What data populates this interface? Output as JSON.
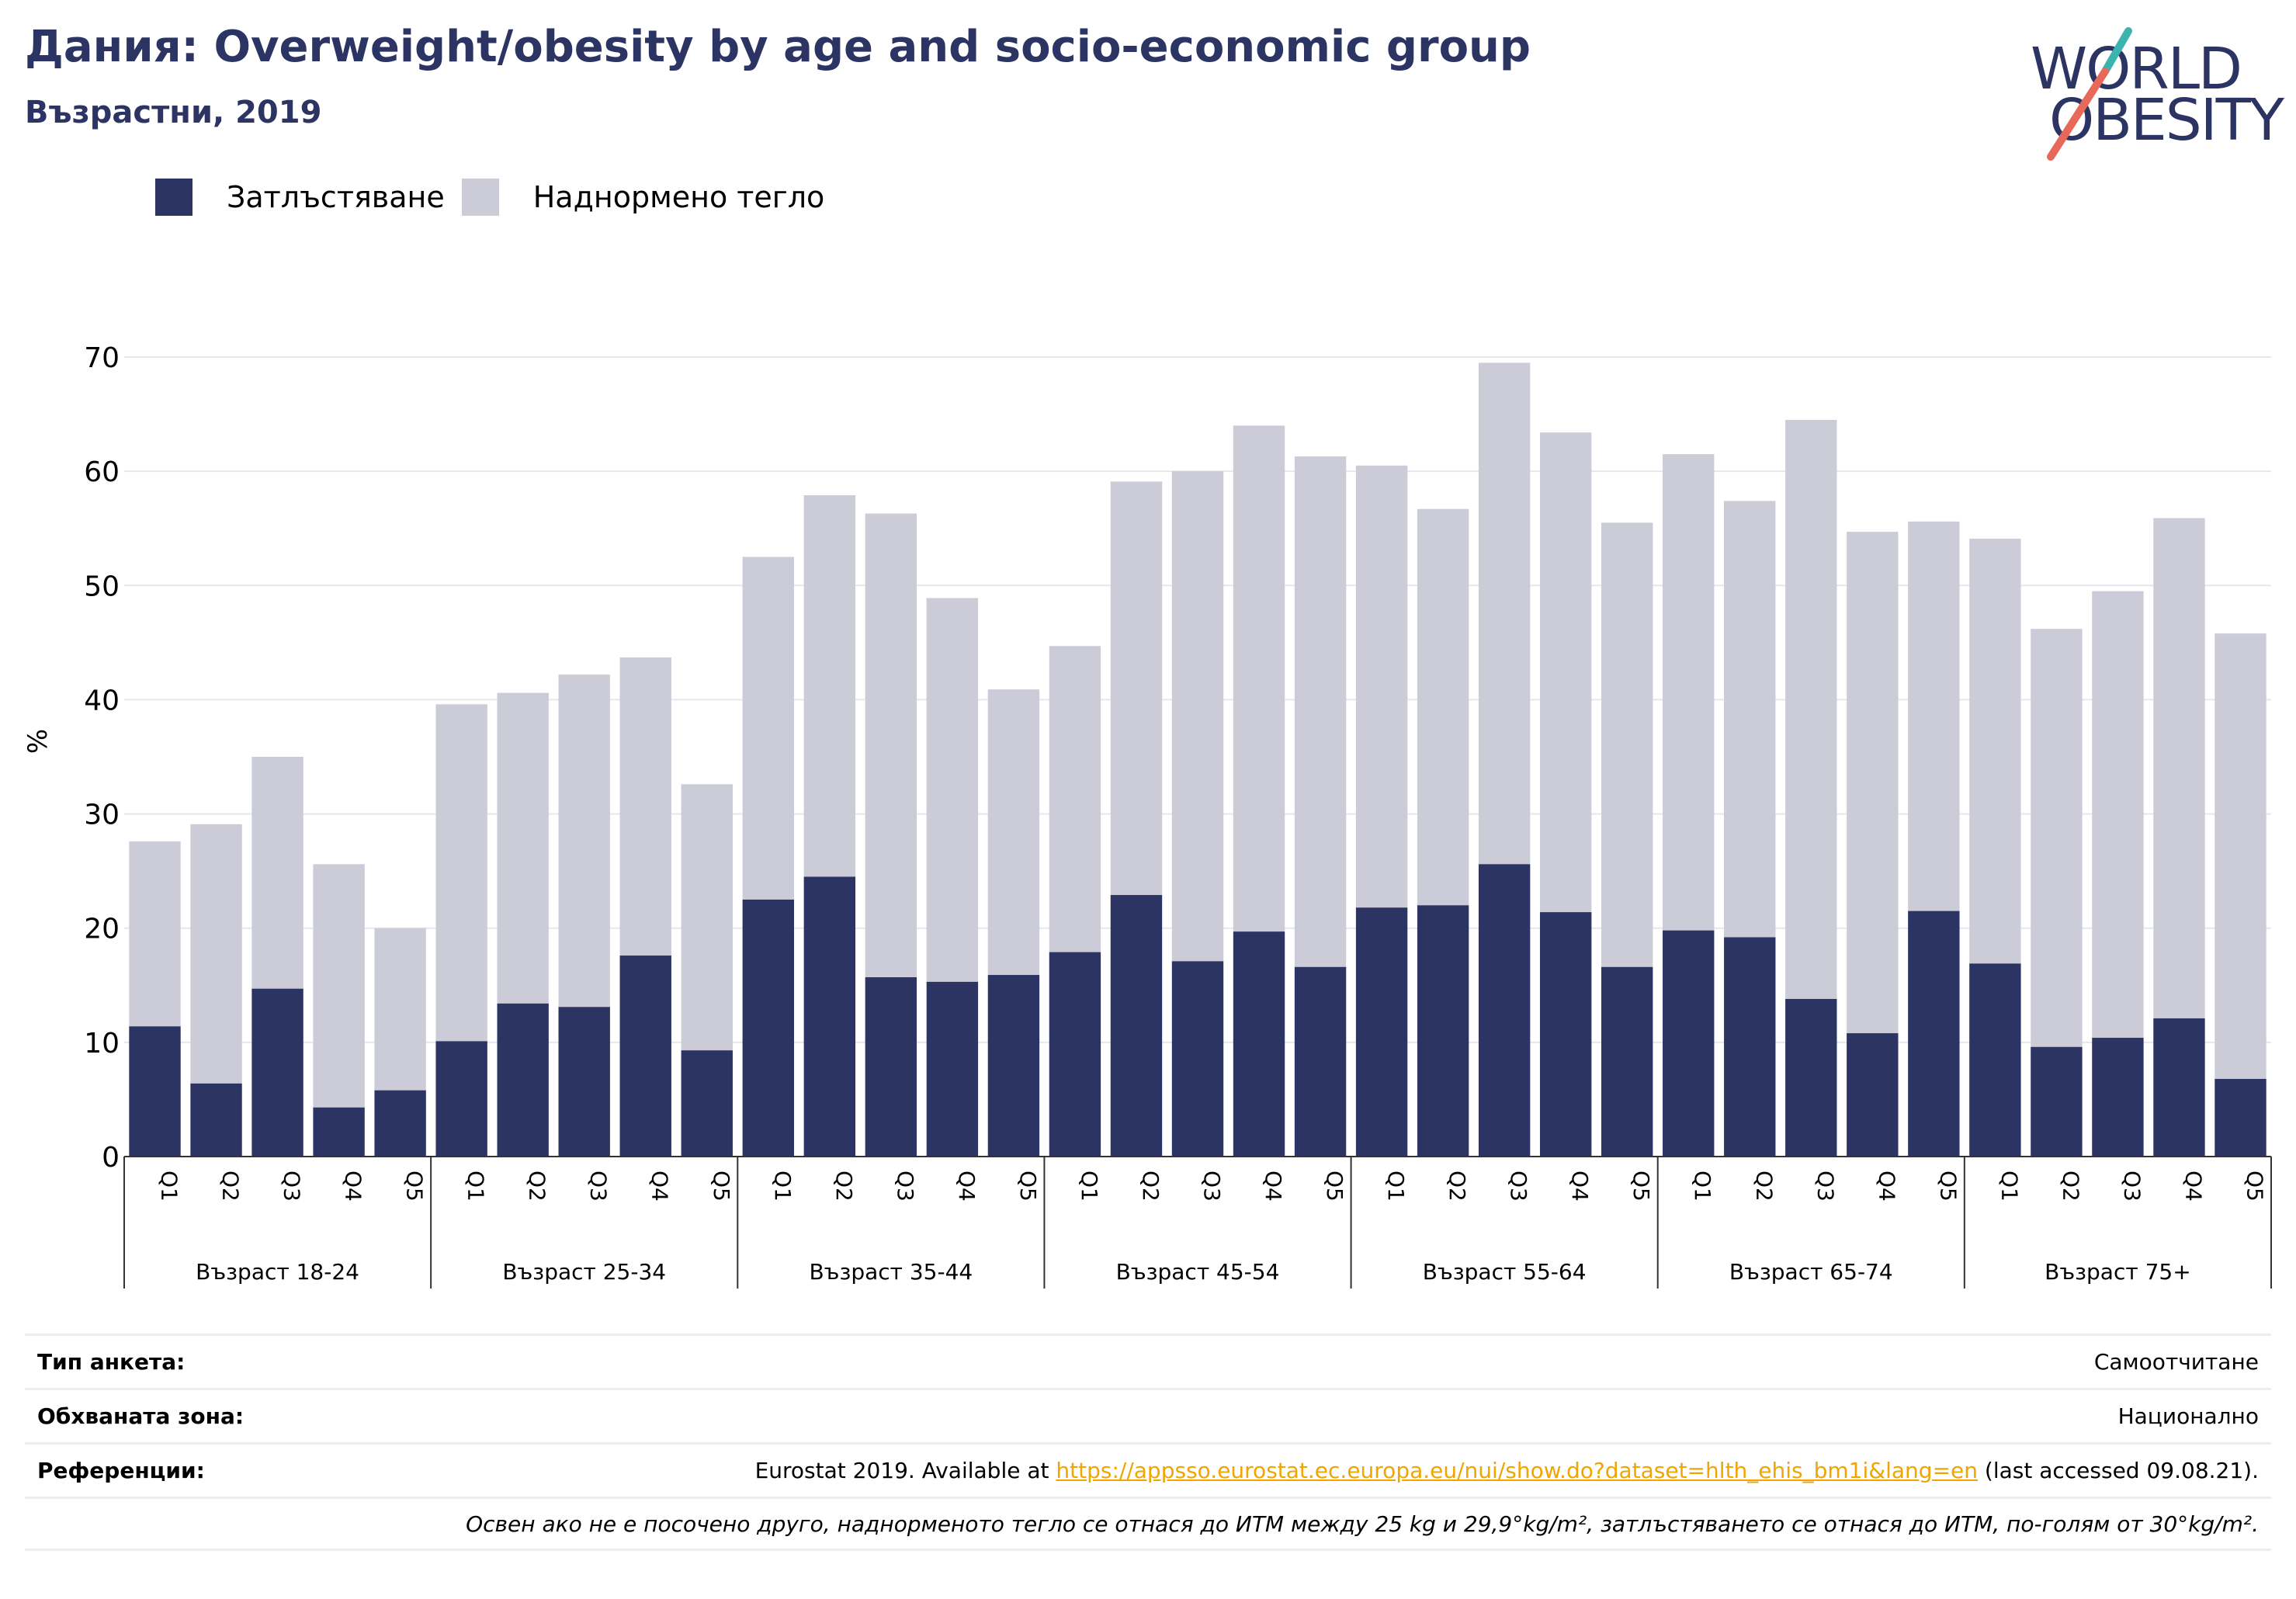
{
  "header": {
    "title": "Дания: Overweight/obesity by age and socio-economic group",
    "subtitle": "Възрастни, 2019"
  },
  "logo": {
    "line1": "WORLD",
    "line2": "OBESITY"
  },
  "colors": {
    "obesity": "#2b3462",
    "overweight": "#cbccd8",
    "title": "#2b3462",
    "gridline": "#e6e7ec",
    "link": "#f0a500",
    "logo_slash_teal": "#3bb4b0",
    "logo_slash_coral": "#e8695a"
  },
  "legend": [
    {
      "label": "Затлъстяване",
      "color": "#2b3462"
    },
    {
      "label": "Наднормено тегло",
      "color": "#cbccd8"
    }
  ],
  "chart_data": {
    "type": "bar",
    "stacked": true,
    "ylabel": "%",
    "ylim": [
      0,
      70
    ],
    "yticks": [
      0,
      10,
      20,
      30,
      40,
      50,
      60,
      70
    ],
    "grid": true,
    "legend_position": "top-left",
    "groups": [
      "Възраст 18-24",
      "Възраст 25-34",
      "Възраст 35-44",
      "Възраст 45-54",
      "Възраст 55-64",
      "Възраст 65-74",
      "Възраст 75+"
    ],
    "quintiles": [
      "Q1",
      "Q2",
      "Q3",
      "Q4",
      "Q5"
    ],
    "series": [
      {
        "name": "Затлъстяване",
        "values": [
          11.4,
          6.4,
          14.7,
          4.3,
          5.8,
          10.1,
          13.4,
          13.1,
          17.6,
          9.3,
          22.5,
          24.5,
          15.7,
          15.3,
          15.9,
          17.9,
          22.9,
          17.1,
          19.7,
          16.6,
          21.8,
          22.0,
          25.6,
          21.4,
          16.6,
          19.8,
          19.2,
          13.8,
          10.8,
          21.5,
          16.9,
          9.6,
          10.4,
          12.1,
          6.8
        ]
      },
      {
        "name": "Наднормено тегло",
        "values": [
          16.2,
          22.7,
          20.3,
          21.3,
          14.2,
          29.5,
          27.2,
          29.1,
          26.1,
          23.3,
          30.0,
          33.4,
          40.6,
          33.6,
          25.0,
          26.8,
          36.2,
          42.9,
          44.3,
          44.7,
          38.7,
          34.7,
          43.9,
          42.0,
          38.9,
          41.7,
          38.2,
          50.7,
          43.9,
          34.1,
          37.2,
          36.6,
          39.1,
          43.8,
          39.0
        ]
      }
    ]
  },
  "footer": {
    "rows": [
      {
        "label": "Тип анкета:",
        "value": "Самоотчитане"
      },
      {
        "label": "Обхваната зона:",
        "value": "Национално"
      }
    ],
    "reference": {
      "label": "Референции:",
      "prefix": "Eurostat 2019. Available at ",
      "link": "https://appsso.eurostat.ec.europa.eu/nui/show.do?dataset=hlth_ehis_bm1i&lang=en",
      "suffix": " (last accessed 09.08.21)."
    },
    "note": "Освен ако не е посочено друго, наднорменото тегло се отнася до ИТМ между 25 kg и 29,9°kg/m², затлъстяването се отнася до ИТМ, по-голям от 30°kg/m²."
  }
}
